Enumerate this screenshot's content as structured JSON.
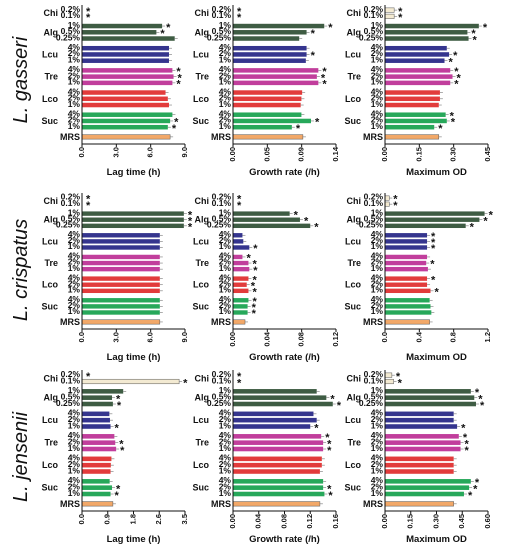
{
  "figure": {
    "species": [
      "L. gasseri",
      "L. crispatus",
      "L. jensenii"
    ],
    "groups": [
      "Chi",
      "Alg",
      "Lcu",
      "Tre",
      "Lco",
      "Suc",
      "MRS"
    ]
  },
  "colors": {
    "Chi": "#f3ead2",
    "Alg": "#3e5c43",
    "Lcu": "#35358e",
    "Tre": "#c13e9c",
    "Lco": "#e23b3b",
    "Suc": "#27a85a",
    "MRS": "#f2a868"
  },
  "chart_data": [
    {
      "type": "bar",
      "orientation": "horizontal",
      "species": "L. gasseri",
      "xlabel": "Lag time (h)",
      "xlim": [
        0,
        9
      ],
      "ticks": [
        "0.0",
        "3.0",
        "6.0",
        "9.0"
      ],
      "group_labels": [
        "Chi",
        "Alg",
        "Lcu",
        "Tre",
        "Lco",
        "Suc",
        "MRS"
      ],
      "categories": [
        "0.2%",
        "0.1%",
        "1%",
        "0.5%",
        "0.25%",
        "4%",
        "2%",
        "1%",
        "4%",
        "2%",
        "1%",
        "4%",
        "2%",
        "1%",
        "4%",
        "2%",
        "1%",
        ""
      ],
      "values": [
        0,
        0,
        7.0,
        6.5,
        8.1,
        7.6,
        7.6,
        7.6,
        7.9,
        8.0,
        7.9,
        7.3,
        7.5,
        7.6,
        7.9,
        7.7,
        7.5,
        7.7
      ],
      "asterisk": [
        true,
        true,
        true,
        true,
        false,
        false,
        false,
        false,
        true,
        true,
        true,
        false,
        false,
        false,
        false,
        true,
        true,
        false
      ]
    },
    {
      "type": "bar",
      "orientation": "horizontal",
      "species": "L. gasseri",
      "xlabel": "Growth rate (/h)",
      "xlim": [
        0,
        0.14
      ],
      "ticks": [
        "0.00",
        "0.05",
        "0.09",
        "0.14"
      ],
      "group_labels": [
        "Chi",
        "Alg",
        "Lcu",
        "Tre",
        "Lco",
        "Suc",
        "MRS"
      ],
      "categories": [
        "0.2%",
        "0.1%",
        "1%",
        "0.5%",
        "0.25%",
        "4%",
        "2%",
        "1%",
        "4%",
        "2%",
        "1%",
        "4%",
        "2%",
        "1%",
        "4%",
        "2%",
        "1%",
        ""
      ],
      "values": [
        0,
        0,
        0.124,
        0.1,
        0.09,
        0.1,
        0.1,
        0.099,
        0.116,
        0.114,
        0.116,
        0.094,
        0.093,
        0.092,
        0.093,
        0.106,
        0.08,
        0.095
      ],
      "asterisk": [
        true,
        true,
        true,
        true,
        false,
        false,
        true,
        false,
        true,
        true,
        true,
        false,
        false,
        false,
        false,
        true,
        true,
        false
      ]
    },
    {
      "type": "bar",
      "orientation": "horizontal",
      "species": "L. gasseri",
      "xlabel": "Maximum OD",
      "xlim": [
        0,
        0.45
      ],
      "ticks": [
        "0.00",
        "0.15",
        "0.30",
        "0.45"
      ],
      "group_labels": [
        "Chi",
        "Alg",
        "Lcu",
        "Tre",
        "Lco",
        "Suc",
        "MRS"
      ],
      "categories": [
        "0.2%",
        "0.1%",
        "1%",
        "0.5%",
        "0.25%",
        "4%",
        "2%",
        "1%",
        "4%",
        "2%",
        "1%",
        "4%",
        "2%",
        "1%",
        "4%",
        "2%",
        "1%",
        ""
      ],
      "values": [
        0.04,
        0.04,
        0.41,
        0.36,
        0.365,
        0.27,
        0.28,
        0.26,
        0.285,
        0.295,
        0.285,
        0.24,
        0.24,
        0.235,
        0.265,
        0.27,
        0.215,
        0.235
      ],
      "asterisk": [
        true,
        true,
        true,
        true,
        true,
        false,
        true,
        true,
        true,
        true,
        true,
        false,
        false,
        false,
        true,
        true,
        true,
        false
      ]
    },
    {
      "type": "bar",
      "orientation": "horizontal",
      "species": "L. crispatus",
      "xlabel": "Lag time (h)",
      "xlim": [
        0,
        9
      ],
      "ticks": [
        "0.0",
        "3.0",
        "6.0",
        "9.0"
      ],
      "group_labels": [
        "Chi",
        "Alg",
        "Lcu",
        "Tre",
        "Lco",
        "Suc",
        "MRS"
      ],
      "categories": [
        "0.2%",
        "0.1%",
        "1%",
        "0.5%",
        "0.25%",
        "4%",
        "2%",
        "1%",
        "4%",
        "2%",
        "1%",
        "4%",
        "2%",
        "1%",
        "4%",
        "2%",
        "1%",
        ""
      ],
      "values": [
        0,
        0,
        8.9,
        8.9,
        8.9,
        6.8,
        6.8,
        6.8,
        6.8,
        6.8,
        6.8,
        6.8,
        6.8,
        6.8,
        6.8,
        6.8,
        6.8,
        6.8
      ],
      "asterisk": [
        true,
        true,
        true,
        true,
        true,
        false,
        false,
        false,
        false,
        false,
        false,
        false,
        false,
        false,
        false,
        false,
        false,
        false
      ]
    },
    {
      "type": "bar",
      "orientation": "horizontal",
      "species": "L. crispatus",
      "xlabel": "Growth rate (/h)",
      "xlim": [
        0,
        0.12
      ],
      "ticks": [
        "0.00",
        "0.04",
        "0.08",
        "0.12"
      ],
      "group_labels": [
        "Chi",
        "Alg",
        "Lcu",
        "Tre",
        "Lco",
        "Suc",
        "MRS"
      ],
      "categories": [
        "0.2%",
        "0.1%",
        "1%",
        "0.5%",
        "0.25%",
        "4%",
        "2%",
        "1%",
        "4%",
        "2%",
        "1%",
        "4%",
        "2%",
        "1%",
        "4%",
        "2%",
        "1%",
        ""
      ],
      "values": [
        0,
        0,
        0.066,
        0.078,
        0.09,
        0.011,
        0.012,
        0.019,
        0.011,
        0.018,
        0.019,
        0.018,
        0.016,
        0.018,
        0.018,
        0.017,
        0.017,
        0.014
      ],
      "asterisk": [
        true,
        true,
        true,
        true,
        true,
        false,
        false,
        true,
        true,
        true,
        true,
        true,
        true,
        true,
        true,
        true,
        true,
        false
      ]
    },
    {
      "type": "bar",
      "orientation": "horizontal",
      "species": "L. crispatus",
      "xlabel": "Maximum OD",
      "xlim": [
        0,
        1.2
      ],
      "ticks": [
        "0.0",
        "0.4",
        "0.8",
        "1.2"
      ],
      "group_labels": [
        "Chi",
        "Alg",
        "Lcu",
        "Tre",
        "Lco",
        "Suc",
        "MRS"
      ],
      "categories": [
        "0.2%",
        "0.1%",
        "1%",
        "0.5%",
        "0.25%",
        "4%",
        "2%",
        "1%",
        "4%",
        "2%",
        "1%",
        "4%",
        "2%",
        "1%",
        "4%",
        "2%",
        "1%",
        ""
      ],
      "values": [
        0.05,
        0.05,
        1.16,
        1.1,
        0.94,
        0.49,
        0.49,
        0.49,
        0.49,
        0.48,
        0.5,
        0.49,
        0.49,
        0.53,
        0.52,
        0.53,
        0.54,
        0.52
      ],
      "asterisk": [
        true,
        true,
        true,
        true,
        true,
        true,
        true,
        true,
        false,
        true,
        false,
        true,
        false,
        true,
        false,
        false,
        false,
        false
      ]
    },
    {
      "type": "bar",
      "orientation": "horizontal",
      "species": "L. jensenii",
      "xlabel": "Lag time (h)",
      "xlim": [
        0,
        3.5
      ],
      "ticks": [
        "0.0",
        "0.9",
        "1.8",
        "2.6",
        "3.5"
      ],
      "group_labels": [
        "Chi",
        "Alg",
        "Lcu",
        "Tre",
        "Lco",
        "Suc",
        "MRS"
      ],
      "categories": [
        "0.2%",
        "0.1%",
        "1%",
        "0.5%",
        "0.25%",
        "4%",
        "2%",
        "1%",
        "4%",
        "2%",
        "1%",
        "4%",
        "2%",
        "1%",
        "4%",
        "2%",
        "1%",
        ""
      ],
      "values": [
        0,
        3.3,
        1.4,
        1.02,
        1.05,
        0.93,
        0.95,
        0.97,
        1.1,
        1.13,
        1.16,
        1.0,
        0.98,
        0.97,
        0.94,
        1.02,
        0.97,
        1.05
      ],
      "asterisk": [
        true,
        true,
        false,
        true,
        true,
        false,
        false,
        true,
        false,
        true,
        true,
        false,
        false,
        false,
        false,
        true,
        true,
        false
      ]
    },
    {
      "type": "bar",
      "orientation": "horizontal",
      "species": "L. jensenii",
      "xlabel": "Growth rate (/h)",
      "xlim": [
        0,
        0.16
      ],
      "ticks": [
        "0.00",
        "0.04",
        "0.08",
        "0.12",
        "0.16"
      ],
      "group_labels": [
        "Chi",
        "Alg",
        "Lcu",
        "Tre",
        "Lco",
        "Suc",
        "MRS"
      ],
      "categories": [
        "0.2%",
        "0.1%",
        "1%",
        "0.5%",
        "0.25%",
        "4%",
        "2%",
        "1%",
        "4%",
        "2%",
        "1%",
        "4%",
        "2%",
        "1%",
        "4%",
        "2%",
        "1%",
        ""
      ],
      "values": [
        0,
        0,
        0.13,
        0.145,
        0.155,
        0.125,
        0.13,
        0.12,
        0.137,
        0.14,
        0.14,
        0.138,
        0.138,
        0.135,
        0.14,
        0.14,
        0.142,
        0.135
      ],
      "asterisk": [
        true,
        true,
        false,
        true,
        true,
        false,
        false,
        true,
        true,
        true,
        true,
        false,
        false,
        false,
        false,
        true,
        true,
        false
      ]
    },
    {
      "type": "bar",
      "orientation": "horizontal",
      "species": "L. jensenii",
      "xlabel": "Maximum OD",
      "xlim": [
        0,
        0.6
      ],
      "ticks": [
        "0.00",
        "0.15",
        "0.30",
        "0.45",
        "0.60"
      ],
      "group_labels": [
        "Chi",
        "Alg",
        "Lcu",
        "Tre",
        "Lco",
        "Suc",
        "MRS"
      ],
      "categories": [
        "0.2%",
        "0.1%",
        "1%",
        "0.5%",
        "0.25%",
        "4%",
        "2%",
        "1%",
        "4%",
        "2%",
        "1%",
        "4%",
        "2%",
        "1%",
        "4%",
        "2%",
        "1%",
        ""
      ],
      "values": [
        0.04,
        0.05,
        0.5,
        0.52,
        0.53,
        0.4,
        0.4,
        0.42,
        0.43,
        0.44,
        0.44,
        0.4,
        0.4,
        0.4,
        0.5,
        0.49,
        0.46,
        0.4
      ],
      "asterisk": [
        true,
        true,
        true,
        true,
        true,
        false,
        false,
        true,
        true,
        true,
        true,
        false,
        false,
        false,
        true,
        true,
        true,
        false
      ]
    }
  ]
}
